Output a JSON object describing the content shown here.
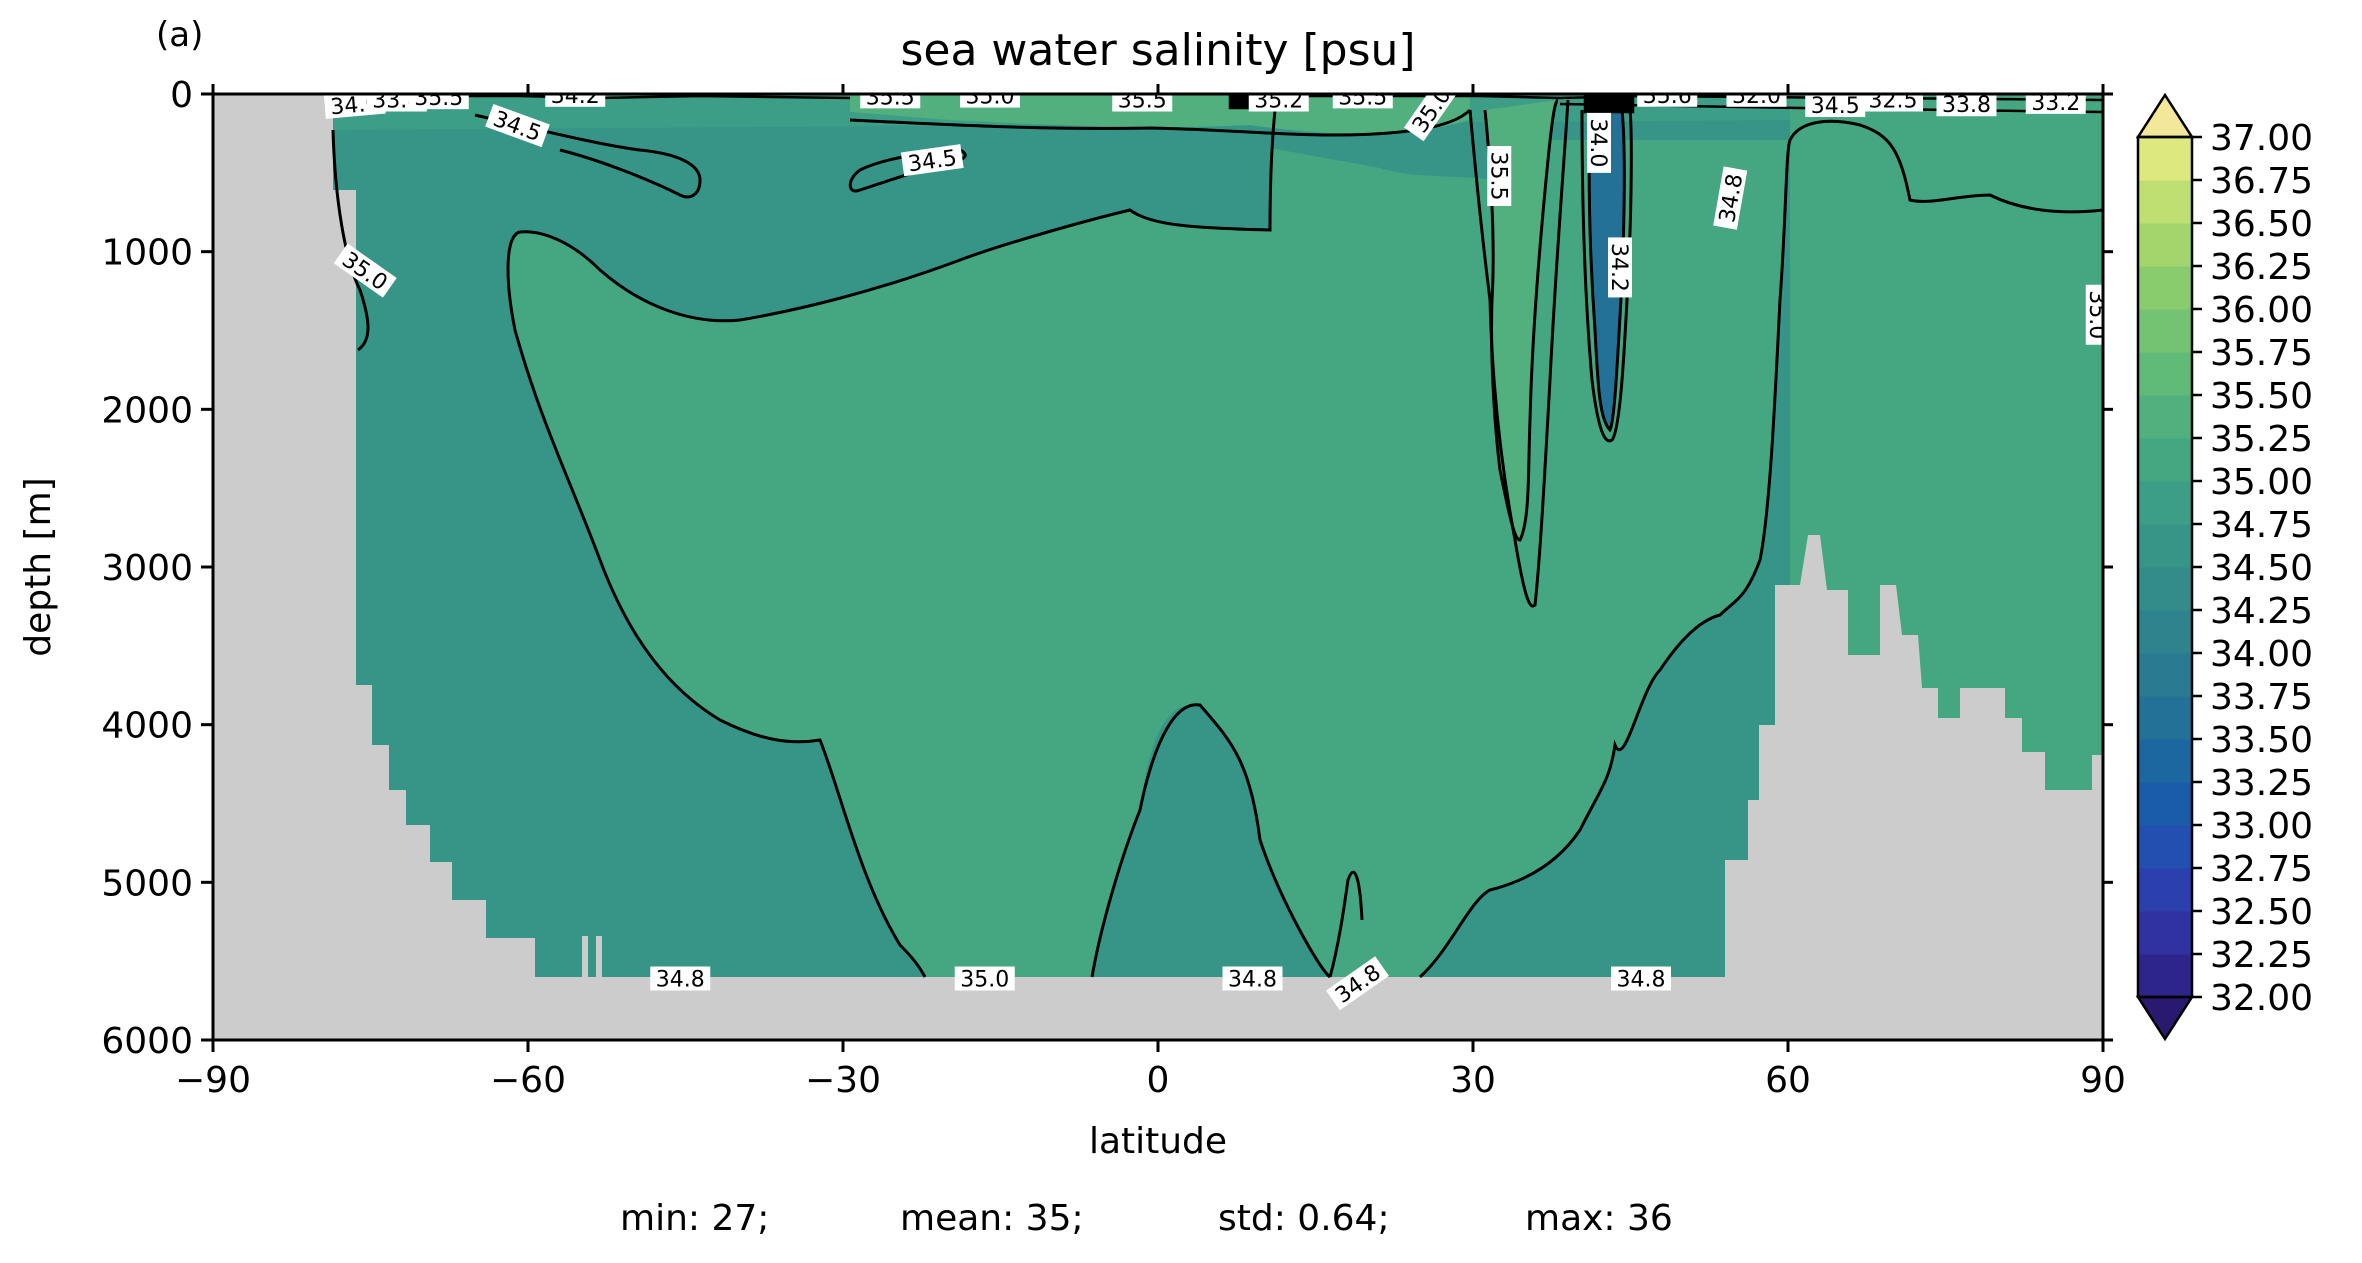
{
  "chart_data": {
    "type": "heatmap",
    "panel_label": "(a)",
    "title": "sea water salinity [psu]",
    "xlabel": "latitude",
    "ylabel": "depth [m]",
    "xlim": [
      -90,
      90
    ],
    "ylim": [
      6000,
      0
    ],
    "x_ticks": [
      -90,
      -60,
      -30,
      0,
      30,
      60,
      90
    ],
    "x_tick_labels": [
      "−90",
      "−60",
      "−30",
      "0",
      "30",
      "60",
      "90"
    ],
    "y_ticks": [
      0,
      1000,
      2000,
      3000,
      4000,
      5000,
      6000
    ],
    "y_tick_labels": [
      "0",
      "1000",
      "2000",
      "3000",
      "4000",
      "5000",
      "6000"
    ],
    "colormap": "haline-like (navy → teal → green → pale yellow)",
    "colorbar": {
      "levels": [
        32.0,
        32.25,
        32.5,
        32.75,
        33.0,
        33.25,
        33.5,
        33.75,
        34.0,
        34.25,
        34.5,
        34.75,
        35.0,
        35.25,
        35.5,
        35.75,
        36.0,
        36.25,
        36.5,
        36.75,
        37.0
      ],
      "tick_labels": [
        "32.00",
        "32.25",
        "32.50",
        "32.75",
        "33.00",
        "33.25",
        "33.50",
        "33.75",
        "34.00",
        "34.25",
        "34.50",
        "34.75",
        "35.00",
        "35.25",
        "35.50",
        "35.75",
        "36.00",
        "36.25",
        "36.50",
        "36.75",
        "37.00"
      ],
      "colors": [
        "#2a1a6f",
        "#2d2589",
        "#2f32a0",
        "#2b40ad",
        "#224fb0",
        "#1b5ca9",
        "#1c67a0",
        "#237197",
        "#2a7a91",
        "#2f838d",
        "#338c8a",
        "#379588",
        "#3c9e86",
        "#44a782",
        "#51b07e",
        "#60ba78",
        "#74c372",
        "#89cc6d",
        "#a3d56c",
        "#bfdf72",
        "#dde97f",
        "#f3e79a"
      ],
      "extend": "both"
    },
    "mask_color": "#cccccc",
    "contour_labels": [
      {
        "text": "34.0",
        "x": -76.5,
        "y": 65,
        "angle": -5
      },
      {
        "text": "33.8",
        "x": -72.5,
        "y": 35,
        "angle": 0
      },
      {
        "text": "35.5",
        "x": -68.5,
        "y": 20,
        "angle": 0
      },
      {
        "text": "34.2",
        "x": -55.5,
        "y": 5,
        "angle": 0
      },
      {
        "text": "34.5",
        "x": -61.0,
        "y": 200,
        "angle": 20
      },
      {
        "text": "35.0",
        "x": -75.5,
        "y": 1120,
        "angle": 35
      },
      {
        "text": "34.5",
        "x": -21.5,
        "y": 420,
        "angle": -8
      },
      {
        "text": "35.5",
        "x": -25.5,
        "y": 15,
        "angle": 0
      },
      {
        "text": "35.0",
        "x": -16.0,
        "y": 10,
        "angle": 0
      },
      {
        "text": "35.5",
        "x": -1.5,
        "y": 35,
        "angle": 0
      },
      {
        "text": "35.2",
        "x": 11.5,
        "y": 35,
        "angle": 0
      },
      {
        "text": "35.5",
        "x": 19.5,
        "y": 15,
        "angle": 0
      },
      {
        "text": "35.0",
        "x": 26.0,
        "y": 100,
        "angle": -55
      },
      {
        "text": "35.5",
        "x": 32.5,
        "y": 520,
        "angle": 90
      },
      {
        "text": "34.0",
        "x": 42.0,
        "y": 310,
        "angle": 90
      },
      {
        "text": "34.2",
        "x": 44.0,
        "y": 1100,
        "angle": 90
      },
      {
        "text": "35.6",
        "x": 48.5,
        "y": 5,
        "angle": 0
      },
      {
        "text": "32.0",
        "x": 57.0,
        "y": 5,
        "angle": 0
      },
      {
        "text": "34.5",
        "x": 64.5,
        "y": 70,
        "angle": 0
      },
      {
        "text": "32.5",
        "x": 70.0,
        "y": 35,
        "angle": 0
      },
      {
        "text": "33.8",
        "x": 77.0,
        "y": 65,
        "angle": 0
      },
      {
        "text": "33.2",
        "x": 85.5,
        "y": 50,
        "angle": 0
      },
      {
        "text": "34.8",
        "x": 54.5,
        "y": 660,
        "angle": -80
      },
      {
        "text": "35.0",
        "x": 89.5,
        "y": 1400,
        "angle": 90
      },
      {
        "text": "34.8",
        "x": -45.5,
        "y": 5610,
        "angle": 0
      },
      {
        "text": "35.0",
        "x": -16.5,
        "y": 5610,
        "angle": 0
      },
      {
        "text": "34.8",
        "x": 9.0,
        "y": 5610,
        "angle": 0
      },
      {
        "text": "34.8",
        "x": 19.0,
        "y": 5640,
        "angle": -35
      },
      {
        "text": "34.8",
        "x": 46.0,
        "y": 5610,
        "angle": 0
      }
    ]
  },
  "stats": {
    "min": "min: 27;",
    "mean": "mean: 35;",
    "std": "std: 0.64;",
    "max": "max: 36"
  }
}
